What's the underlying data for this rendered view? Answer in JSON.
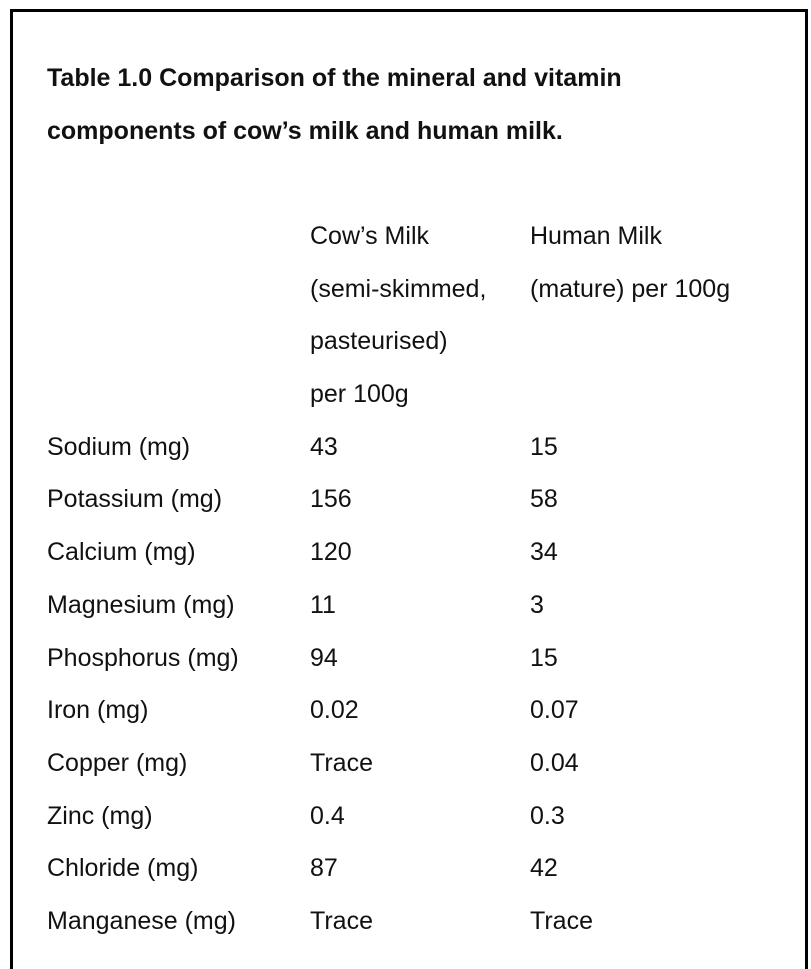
{
  "title": {
    "line1": "Table 1.0 Comparison of the mineral and vitamin",
    "line2": "components of cow’s milk and human milk."
  },
  "table": {
    "columns": {
      "cow": [
        "Cow’s Milk",
        "(semi-skimmed,",
        "pasteurised)",
        "per 100g"
      ],
      "human": [
        "Human Milk",
        "(mature) per 100g"
      ]
    },
    "rows": [
      {
        "nutrient": "Sodium (mg)",
        "cow": "43",
        "human": "15"
      },
      {
        "nutrient": "Potassium (mg)",
        "cow": "156",
        "human": "58"
      },
      {
        "nutrient": "Calcium (mg)",
        "cow": "120",
        "human": "34"
      },
      {
        "nutrient": "Magnesium (mg)",
        "cow": "11",
        "human": "3"
      },
      {
        "nutrient": "Phosphorus (mg)",
        "cow": "94",
        "human": "15"
      },
      {
        "nutrient": "Iron (mg)",
        "cow": "0.02",
        "human": "0.07"
      },
      {
        "nutrient": "Copper (mg)",
        "cow": "Trace",
        "human": "0.04"
      },
      {
        "nutrient": "Zinc (mg)",
        "cow": "0.4",
        "human": "0.3"
      },
      {
        "nutrient": "Chloride (mg)",
        "cow": "87",
        "human": "42"
      },
      {
        "nutrient": "Manganese (mg)",
        "cow": "Trace",
        "human": "Trace"
      }
    ]
  }
}
